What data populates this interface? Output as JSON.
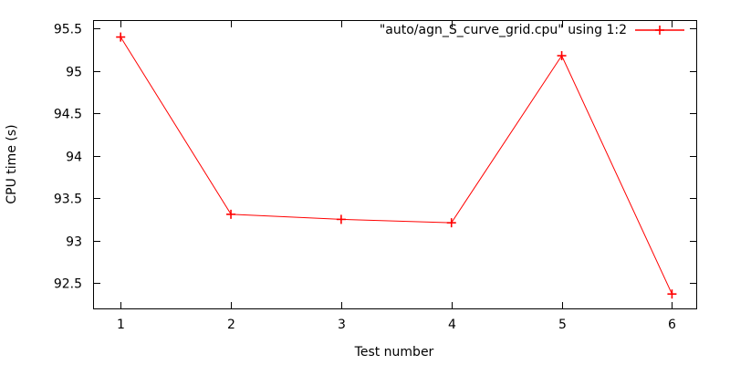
{
  "figure": {
    "background": "#ffffff",
    "axis_color": "#000000"
  },
  "chart_data": {
    "type": "line",
    "title": "",
    "xlabel": "Test number",
    "ylabel": "CPU time (s)",
    "x": [
      1,
      2,
      3,
      4,
      5,
      6
    ],
    "series": [
      {
        "name": "\"auto/agn_S_curve_grid.cpu\" using 1:2",
        "values": [
          95.4,
          93.31,
          93.25,
          93.21,
          95.18,
          92.37
        ],
        "color": "#ff0000",
        "marker": "plus"
      }
    ],
    "legend_label": "\"auto/agn_S_curve_grid.cpu\" using 1:2",
    "legend_position": "top-right",
    "xticks": [
      "1",
      "2",
      "3",
      "4",
      "5",
      "6"
    ],
    "xtick_values": [
      1,
      2,
      3,
      4,
      5,
      6
    ],
    "yticks": [
      "92.5",
      "93",
      "93.5",
      "94",
      "94.5",
      "95",
      "95.5"
    ],
    "ytick_values": [
      92.5,
      93.0,
      93.5,
      94.0,
      94.5,
      95.0,
      95.5
    ],
    "xlim": [
      0.75,
      6.22
    ],
    "ylim": [
      92.2,
      95.6
    ],
    "grid": false,
    "ticks_mirrored": true
  }
}
